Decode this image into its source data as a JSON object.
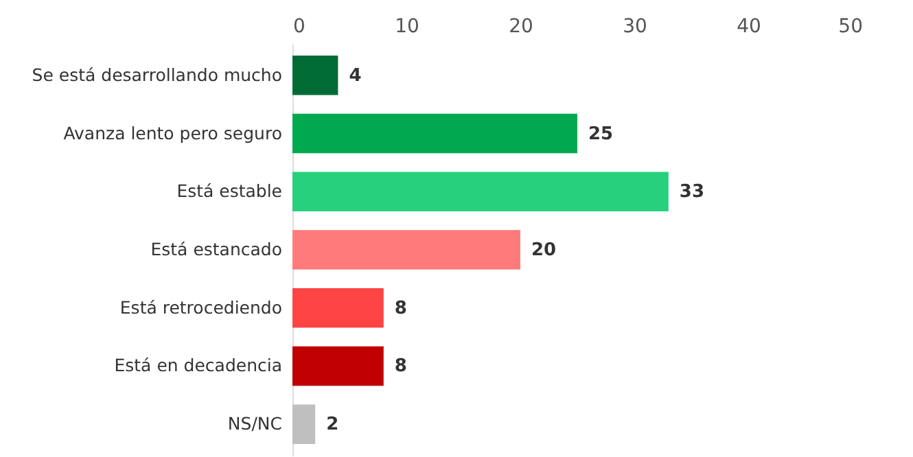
{
  "chart_data": {
    "type": "bar",
    "orientation": "horizontal",
    "categories": [
      "Se está desarrollando mucho",
      "Avanza lento pero seguro",
      "Está estable",
      "Está estancado",
      "Está retrocediendo",
      "Está en decadencia",
      "NS/NC"
    ],
    "values": [
      4,
      25,
      33,
      20,
      8,
      8,
      2
    ],
    "colors": [
      "#006b35",
      "#00a84f",
      "#26d07c",
      "#ff7b7b",
      "#ff4444",
      "#c00000",
      "#bfbfbf"
    ],
    "xlim": [
      0,
      50
    ],
    "xticks": [
      0,
      10,
      20,
      30,
      40,
      50
    ],
    "data_labels": true,
    "grid": false
  }
}
